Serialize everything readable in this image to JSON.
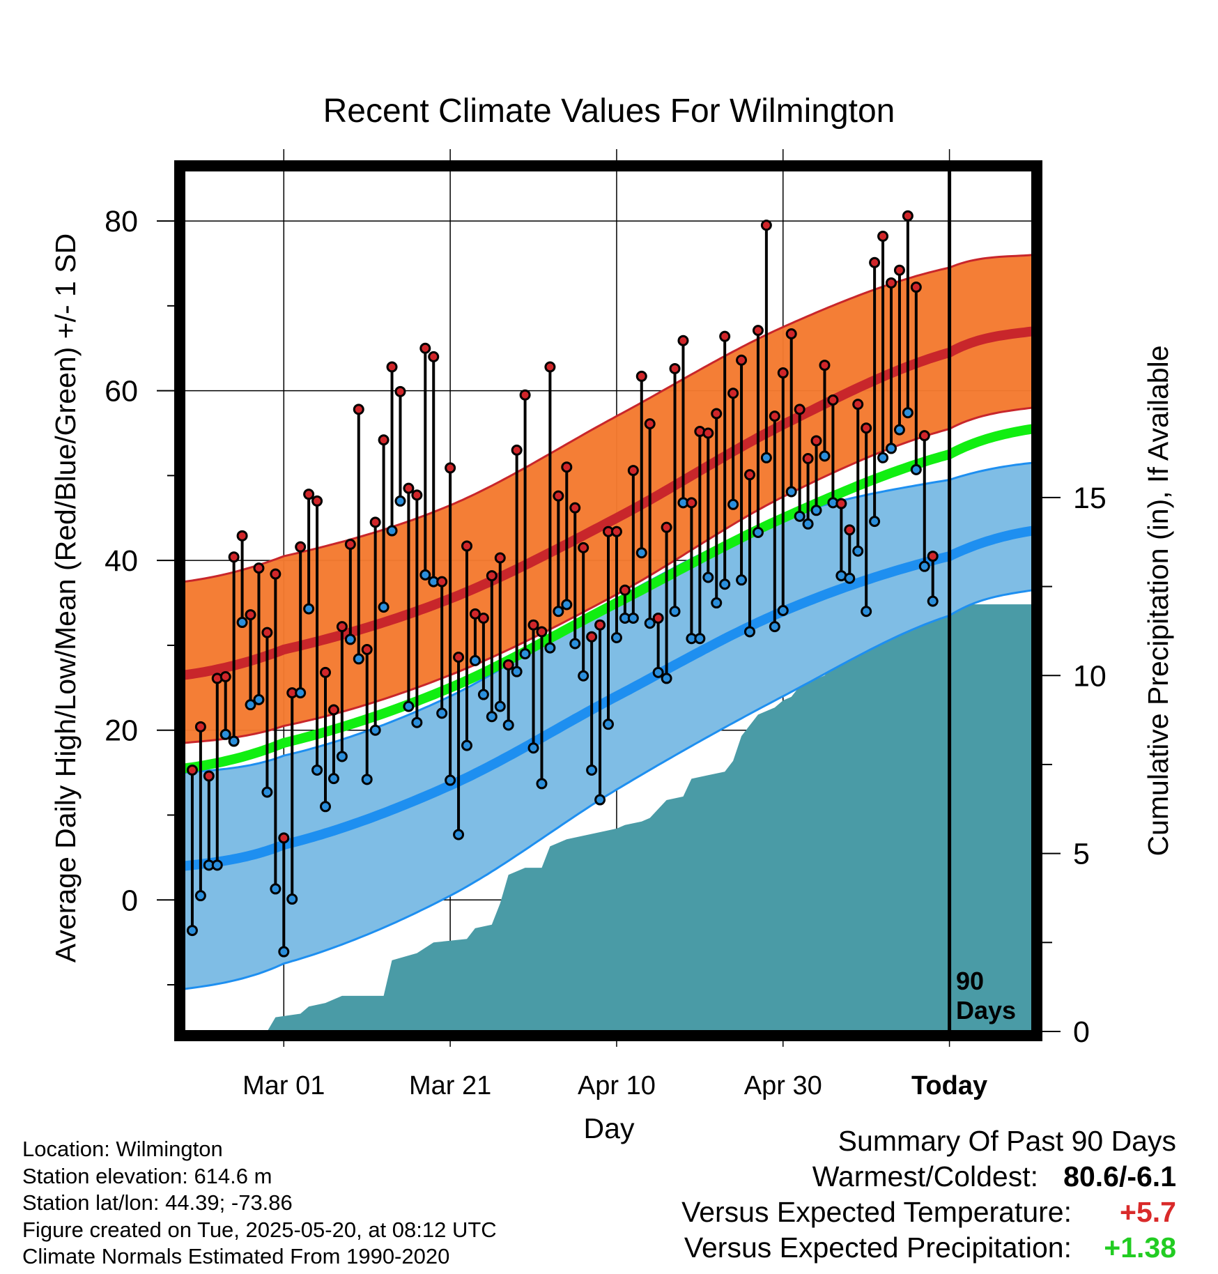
{
  "title": "Recent Climate Values For Wilmington",
  "x_axis": {
    "label": "Day",
    "ticks": [
      "Mar 01",
      "Mar 21",
      "Apr 10",
      "Apr 30",
      "Today"
    ]
  },
  "y_axis_left": {
    "label": "Average Daily High/Low/Mean (Red/Blue/Green) +/- 1 SD",
    "ticks": [
      "0",
      "20",
      "40",
      "60",
      "80"
    ]
  },
  "y_axis_right": {
    "label": "Cumulative Precipitation (in), If Available",
    "ticks": [
      "0",
      "5",
      "10",
      "15"
    ]
  },
  "marker": {
    "line1": "90",
    "line2": "Days"
  },
  "colors": {
    "high_band": "#f47a30",
    "high_mean": "#c8262b",
    "low_band": "#7fbde5",
    "low_mean": "#1e8ff0",
    "mean_line": "#11ee11",
    "precip": "#4a9ba6",
    "high_point": "#d0262a",
    "low_point": "#2b8fdc",
    "temp_anomaly": "#d92a2a",
    "precip_anomaly": "#22cc22"
  },
  "info": {
    "location": "Location: Wilmington",
    "elevation": "Station elevation: 614.6 m",
    "latlon": "Station lat/lon: 44.39; -73.86",
    "created": "Figure created on Tue, 2025-05-20, at 08:12 UTC",
    "normals": "Climate Normals Estimated From 1990-2020"
  },
  "summary": {
    "heading": "Summary Of Past 90 Days",
    "warmest_label": "Warmest/Coldest:",
    "warmest_value": "80.6/-6.1",
    "temp_label": "Versus Expected Temperature:",
    "temp_value": "+5.7",
    "precip_label": "Versus Expected Precipitation:",
    "precip_value": "+1.38"
  },
  "chart_data": {
    "type": "line",
    "x_range_days_from_mar01": [
      -12,
      90
    ],
    "today_day_from_mar01": 80,
    "y_range_temp": [
      -15.5,
      86
    ],
    "y_range_precip": [
      0,
      24.2
    ],
    "normals": {
      "days": [
        -12,
        0,
        20,
        40,
        60,
        80,
        90
      ],
      "high_mean": [
        26.5,
        29.5,
        35.5,
        45,
        56,
        64.5,
        67
      ],
      "high_upper": [
        37.5,
        40.5,
        46.5,
        57,
        67.5,
        74.5,
        76
      ],
      "high_lower": [
        18.5,
        20.5,
        26.5,
        36,
        47.5,
        55.5,
        58
      ],
      "mean": [
        15.5,
        18.5,
        25,
        35,
        45,
        52.5,
        55.5
      ],
      "low_mean": [
        4,
        6.5,
        13.5,
        24,
        34,
        40.5,
        43.5
      ],
      "low_upper": [
        15,
        17,
        24,
        35.5,
        45,
        49.5,
        51.5
      ],
      "low_lower": [
        -10.5,
        -7.5,
        0.5,
        13,
        24,
        33.5,
        36.5
      ]
    },
    "daily": [
      [
        -11,
        15.3,
        -3.6
      ],
      [
        -10,
        20.4,
        0.5
      ],
      [
        -9,
        14.6,
        4.1
      ],
      [
        -8,
        26.1,
        4.1
      ],
      [
        -7,
        26.3,
        19.5
      ],
      [
        -6,
        40.4,
        18.7
      ],
      [
        -5,
        42.9,
        32.7
      ],
      [
        -4,
        33.6,
        23.0
      ],
      [
        -3,
        39.1,
        23.6
      ],
      [
        -2,
        31.5,
        12.7
      ],
      [
        -1,
        38.4,
        1.3
      ],
      [
        0,
        7.3,
        -6.1
      ],
      [
        1,
        24.4,
        0.1
      ],
      [
        2,
        41.6,
        24.4
      ],
      [
        3,
        47.8,
        34.3
      ],
      [
        4,
        47.0,
        15.3
      ],
      [
        5,
        26.8,
        11.0
      ],
      [
        6,
        22.4,
        14.3
      ],
      [
        7,
        32.2,
        16.9
      ],
      [
        8,
        41.9,
        30.7
      ],
      [
        9,
        57.8,
        28.4
      ],
      [
        10,
        29.5,
        14.2
      ],
      [
        11,
        44.5,
        20.0
      ],
      [
        12,
        54.2,
        34.5
      ],
      [
        13,
        62.8,
        43.5
      ],
      [
        14,
        59.9,
        47.0
      ],
      [
        15,
        48.5,
        22.8
      ],
      [
        16,
        47.7,
        20.9
      ],
      [
        17,
        65.0,
        38.3
      ],
      [
        18,
        64.0,
        37.5
      ],
      [
        19,
        37.5,
        22.0
      ],
      [
        20,
        50.9,
        14.1
      ],
      [
        21,
        28.6,
        7.7
      ],
      [
        22,
        41.7,
        18.2
      ],
      [
        23,
        33.7,
        28.2
      ],
      [
        24,
        33.2,
        24.2
      ],
      [
        25,
        38.2,
        21.6
      ],
      [
        26,
        40.3,
        22.8
      ],
      [
        27,
        27.7,
        20.6
      ],
      [
        28,
        53.0,
        26.9
      ],
      [
        29,
        59.5,
        29.0
      ],
      [
        30,
        32.4,
        17.9
      ],
      [
        31,
        31.6,
        13.7
      ],
      [
        32,
        62.8,
        29.7
      ],
      [
        33,
        47.6,
        34.0
      ],
      [
        34,
        51.0,
        34.8
      ],
      [
        35,
        46.2,
        30.2
      ],
      [
        36,
        41.5,
        26.4
      ],
      [
        37,
        31.0,
        15.3
      ],
      [
        38,
        32.4,
        11.8
      ],
      [
        39,
        43.4,
        20.7
      ],
      [
        40,
        43.4,
        30.9
      ],
      [
        41,
        36.5,
        33.2
      ],
      [
        42,
        50.6,
        33.2
      ],
      [
        43,
        61.7,
        40.9
      ],
      [
        44,
        56.1,
        32.6
      ],
      [
        45,
        33.2,
        26.8
      ],
      [
        46,
        43.9,
        26.1
      ],
      [
        47,
        62.6,
        34.0
      ],
      [
        48,
        65.9,
        46.8
      ],
      [
        49,
        46.8,
        30.8
      ],
      [
        50,
        55.2,
        30.8
      ],
      [
        51,
        55.0,
        38.0
      ],
      [
        52,
        57.3,
        35.0
      ],
      [
        53,
        66.4,
        37.2
      ],
      [
        54,
        59.7,
        46.6
      ],
      [
        55,
        63.6,
        37.7
      ],
      [
        56,
        50.1,
        31.6
      ],
      [
        57,
        67.1,
        43.3
      ],
      [
        58,
        79.5,
        52.1
      ],
      [
        59,
        57.0,
        32.2
      ],
      [
        60,
        62.1,
        34.1
      ],
      [
        61,
        66.7,
        48.1
      ],
      [
        62,
        57.8,
        45.2
      ],
      [
        63,
        52.0,
        44.3
      ],
      [
        64,
        54.1,
        45.9
      ],
      [
        65,
        63.0,
        52.3
      ],
      [
        66,
        58.9,
        46.8
      ],
      [
        67,
        46.7,
        38.2
      ],
      [
        68,
        43.6,
        37.9
      ],
      [
        69,
        58.4,
        41.1
      ],
      [
        70,
        55.6,
        34.0
      ],
      [
        71,
        75.1,
        44.6
      ],
      [
        72,
        78.2,
        52.1
      ],
      [
        73,
        72.7,
        53.2
      ],
      [
        74,
        74.2,
        55.4
      ],
      [
        75,
        80.6,
        57.4
      ],
      [
        76,
        72.2,
        50.7
      ],
      [
        77,
        54.7,
        39.3
      ],
      [
        78,
        40.5,
        35.2
      ]
    ],
    "precip_cumulative": [
      [
        -12,
        0
      ],
      [
        -2,
        0
      ],
      [
        -1,
        0.4
      ],
      [
        2,
        0.5
      ],
      [
        3,
        0.7
      ],
      [
        5,
        0.8
      ],
      [
        7,
        1.0
      ],
      [
        12,
        1.0
      ],
      [
        13,
        2.0
      ],
      [
        16,
        2.2
      ],
      [
        18,
        2.5
      ],
      [
        22,
        2.6
      ],
      [
        23,
        2.9
      ],
      [
        25,
        3.0
      ],
      [
        26,
        3.6
      ],
      [
        27,
        4.4
      ],
      [
        29,
        4.6
      ],
      [
        31,
        4.6
      ],
      [
        32,
        5.2
      ],
      [
        34,
        5.4
      ],
      [
        36,
        5.5
      ],
      [
        38,
        5.6
      ],
      [
        40,
        5.7
      ],
      [
        41,
        5.8
      ],
      [
        43,
        5.9
      ],
      [
        44,
        6.0
      ],
      [
        46,
        6.5
      ],
      [
        48,
        6.6
      ],
      [
        49,
        7.1
      ],
      [
        51,
        7.2
      ],
      [
        53,
        7.3
      ],
      [
        54,
        7.6
      ],
      [
        55,
        8.3
      ],
      [
        56,
        8.6
      ],
      [
        57,
        8.9
      ],
      [
        59,
        9.1
      ],
      [
        60,
        9.3
      ],
      [
        61,
        9.4
      ],
      [
        62,
        9.7
      ],
      [
        63,
        9.8
      ],
      [
        65,
        10.0
      ],
      [
        66,
        10.3
      ],
      [
        67,
        10.8
      ],
      [
        69,
        10.9
      ],
      [
        73,
        11.0
      ],
      [
        74,
        11.2
      ],
      [
        75,
        11.7
      ],
      [
        76,
        12.0
      ],
      [
        90,
        12.0
      ]
    ]
  }
}
